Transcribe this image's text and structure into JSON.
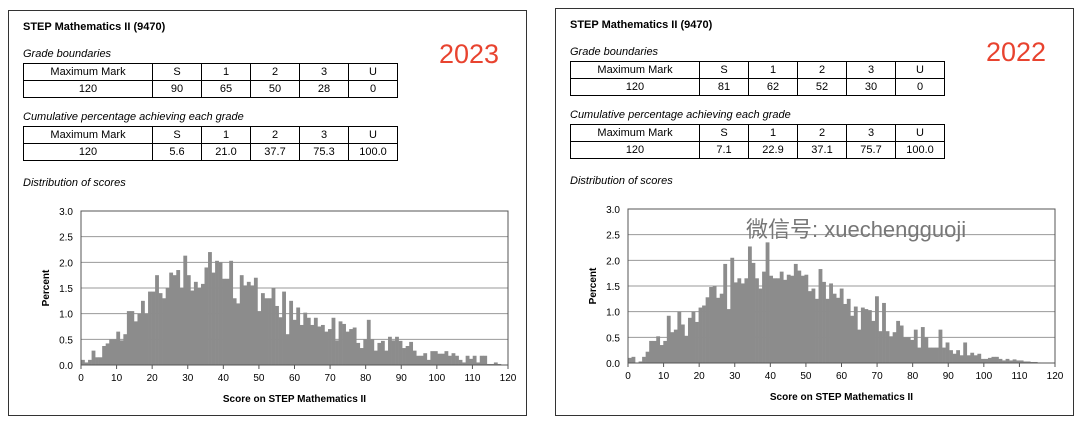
{
  "chart_data": [
    {
      "type": "bar",
      "year_label": "2023",
      "title": "STEP Mathematics II (9470)",
      "grade_boundaries": {
        "caption": "Grade boundaries",
        "headers": [
          "Maximum Mark",
          "S",
          "1",
          "2",
          "3",
          "U"
        ],
        "values": [
          "120",
          "90",
          "65",
          "50",
          "28",
          "0"
        ]
      },
      "cumulative": {
        "caption": "Cumulative percentage achieving each grade",
        "headers": [
          "Maximum Mark",
          "S",
          "1",
          "2",
          "3",
          "U"
        ],
        "values": [
          "120",
          "5.6",
          "21.0",
          "37.7",
          "75.3",
          "100.0"
        ]
      },
      "distribution_caption": "Distribution of scores",
      "xlabel": "Score on STEP Mathematics II",
      "ylabel": "Percent",
      "xlim": [
        0,
        120
      ],
      "ylim": [
        0,
        3.0
      ],
      "grid": true,
      "xticks": [
        "0",
        "10",
        "20",
        "30",
        "40",
        "50",
        "60",
        "70",
        "80",
        "90",
        "100",
        "110",
        "120"
      ],
      "yticks": [
        "0.0",
        "0.5",
        "1.0",
        "1.5",
        "2.0",
        "2.5",
        "3.0"
      ],
      "bar_color": "#8c8c8c",
      "values": [
        0.1,
        0.05,
        0.1,
        0.28,
        0.15,
        0.15,
        0.37,
        0.42,
        0.5,
        0.5,
        0.65,
        0.48,
        0.6,
        1.05,
        1.05,
        0.85,
        1.0,
        1.25,
        1.0,
        1.43,
        1.43,
        1.75,
        1.4,
        1.3,
        1.5,
        1.8,
        1.75,
        1.85,
        1.5,
        2.13,
        1.75,
        1.45,
        1.62,
        1.5,
        1.58,
        1.9,
        2.2,
        1.8,
        2.03,
        2.0,
        1.68,
        1.68,
        2.03,
        1.3,
        1.2,
        1.75,
        1.55,
        1.62,
        1.55,
        1.7,
        1.05,
        1.4,
        1.3,
        1.3,
        1.5,
        1.15,
        0.93,
        1.43,
        0.6,
        1.25,
        0.88,
        1.12,
        0.78,
        1.02,
        0.92,
        0.78,
        0.92,
        0.75,
        0.78,
        0.65,
        0.7,
        0.92,
        0.48,
        0.85,
        0.8,
        0.65,
        0.7,
        0.73,
        0.43,
        0.33,
        0.5,
        0.88,
        0.5,
        0.28,
        0.43,
        0.47,
        0.28,
        0.55,
        0.48,
        0.55,
        0.47,
        0.33,
        0.37,
        0.45,
        0.28,
        0.18,
        0.18,
        0.23,
        0.1,
        0.27,
        0.27,
        0.22,
        0.22,
        0.27,
        0.18,
        0.23,
        0.18,
        0.1,
        0.05,
        0.18,
        0.12,
        0.18,
        0.05,
        0.18,
        0.18,
        0.02,
        0.02,
        0.05,
        0.02,
        0,
        0
      ]
    },
    {
      "type": "bar",
      "year_label": "2022",
      "title": "STEP Mathematics II (9470)",
      "grade_boundaries": {
        "caption": "Grade boundaries",
        "headers": [
          "Maximum Mark",
          "S",
          "1",
          "2",
          "3",
          "U"
        ],
        "values": [
          "120",
          "81",
          "62",
          "52",
          "30",
          "0"
        ]
      },
      "cumulative": {
        "caption": "Cumulative percentage achieving each grade",
        "headers": [
          "Maximum Mark",
          "S",
          "1",
          "2",
          "3",
          "U"
        ],
        "values": [
          "120",
          "7.1",
          "22.9",
          "37.1",
          "75.7",
          "100.0"
        ]
      },
      "distribution_caption": "Distribution of scores",
      "xlabel": "Score on STEP Mathematics II",
      "ylabel": "Percent",
      "xlim": [
        0,
        120
      ],
      "ylim": [
        0,
        3.0
      ],
      "grid": true,
      "xticks": [
        "0",
        "10",
        "20",
        "30",
        "40",
        "50",
        "60",
        "70",
        "80",
        "90",
        "100",
        "110",
        "120"
      ],
      "yticks": [
        "0.0",
        "0.5",
        "1.0",
        "1.5",
        "2.0",
        "2.5",
        "3.0"
      ],
      "bar_color": "#8c8c8c",
      "values": [
        0.1,
        0.12,
        0,
        0.03,
        0.12,
        0.22,
        0.43,
        0.43,
        0.52,
        0.35,
        0.43,
        0.92,
        0.6,
        0.65,
        1.0,
        0.75,
        0.53,
        0.88,
        1.0,
        0.8,
        1.08,
        1.12,
        1.28,
        1.48,
        1.5,
        1.27,
        1.35,
        1.93,
        1.05,
        2.05,
        1.57,
        1.65,
        1.55,
        1.65,
        2.27,
        1.95,
        1.65,
        1.45,
        1.78,
        2.35,
        1.7,
        1.65,
        1.65,
        1.78,
        1.62,
        1.72,
        1.7,
        1.93,
        1.8,
        1.7,
        1.72,
        1.4,
        1.45,
        1.25,
        1.83,
        1.58,
        1.25,
        1.55,
        1.35,
        1.27,
        1.45,
        1.15,
        1.25,
        0.92,
        1.1,
        0.65,
        1.08,
        1.05,
        1.03,
        0.82,
        1.3,
        0.62,
        1.17,
        0.62,
        0.52,
        0.6,
        0.82,
        0.73,
        0.5,
        0.5,
        0.45,
        0.65,
        0.3,
        0.7,
        0.5,
        0.3,
        0.3,
        0.3,
        0.65,
        0.3,
        0.4,
        0.25,
        0.18,
        0.25,
        0.15,
        0.4,
        0.15,
        0.2,
        0.15,
        0.18,
        0.08,
        0.08,
        0.1,
        0.12,
        0.12,
        0.08,
        0.05,
        0.08,
        0.05,
        0.07,
        0.05,
        0.05,
        0.03,
        0.03,
        0.02,
        0.02,
        0.01,
        0,
        0,
        0,
        0
      ]
    }
  ],
  "watermark": "微信号: xuechengguoji",
  "year_color": "#e8432f"
}
